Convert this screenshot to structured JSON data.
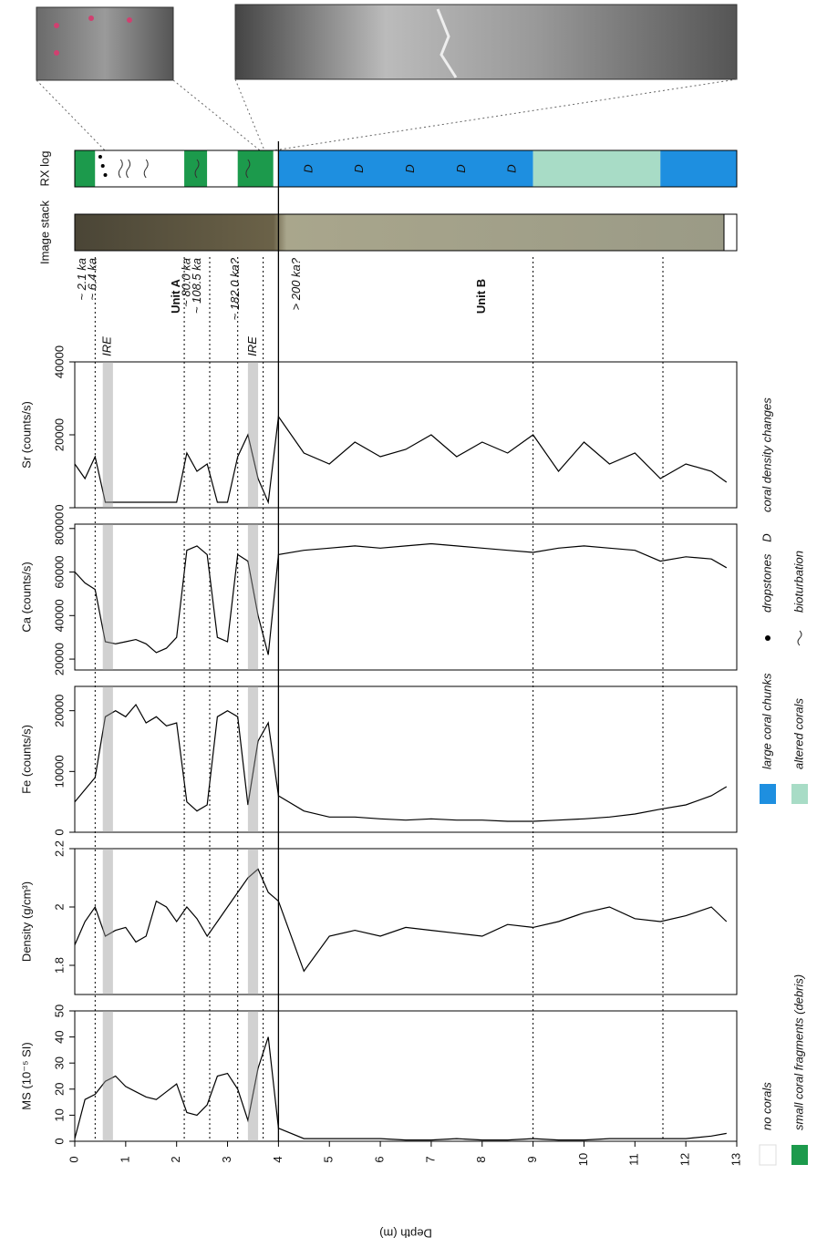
{
  "rx_log": {
    "label": "RX log",
    "segments": [
      {
        "from": 0,
        "to": 0.4,
        "color": "#1c9a4c"
      },
      {
        "from": 0.4,
        "to": 2.15,
        "color": "#ffffff"
      },
      {
        "from": 2.15,
        "to": 2.6,
        "color": "#1c9a4c"
      },
      {
        "from": 2.6,
        "to": 3.2,
        "color": "#ffffff"
      },
      {
        "from": 3.2,
        "to": 3.9,
        "color": "#1c9a4c"
      },
      {
        "from": 3.9,
        "to": 4.0,
        "color": "#ffffff"
      },
      {
        "from": 4.0,
        "to": 9.0,
        "color": "#1e8fe0"
      },
      {
        "from": 9.0,
        "to": 11.5,
        "color": "#a8dcc6"
      },
      {
        "from": 11.5,
        "to": 13.0,
        "color": "#1e8fe0"
      }
    ]
  },
  "image_stack": {
    "label": "Image stack"
  },
  "ages": [
    {
      "label": "~ 2.1 ka",
      "depth": 0.05
    },
    {
      "label": "~ 6.4 ka",
      "depth": 0.25
    },
    {
      "label": "~ 80.0 ka",
      "depth": 2.1
    },
    {
      "label": "~ 108.5 ka",
      "depth": 2.3
    },
    {
      "label": "~ 182.0 ka?",
      "depth": 3.05
    },
    {
      "label": "> 200 ka?",
      "depth": 4.25
    }
  ],
  "units": [
    "Unit A",
    "Unit B"
  ],
  "boundary": 4.0,
  "dividers": [
    0.4,
    2.15,
    2.65,
    3.2,
    3.7,
    9.0,
    11.55
  ],
  "ire_bands": [
    {
      "label": "IRE",
      "from": 0.55,
      "to": 0.75
    },
    {
      "label": "IRE",
      "from": 3.4,
      "to": 3.6
    }
  ],
  "chart_data": [
    {
      "type": "line",
      "title": "Sr (counts/s)",
      "color": "#000000",
      "ylim": [
        0,
        40000
      ],
      "yticks": [
        0,
        20000,
        40000
      ],
      "xlim": [
        0,
        13
      ],
      "x": [
        0,
        0.2,
        0.4,
        0.6,
        0.8,
        1.0,
        1.2,
        1.4,
        1.6,
        1.8,
        2.0,
        2.2,
        2.4,
        2.6,
        2.8,
        3.0,
        3.2,
        3.4,
        3.6,
        3.8,
        4.0,
        4.5,
        5.0,
        5.5,
        6.0,
        6.5,
        7.0,
        7.5,
        8.0,
        8.5,
        9.0,
        9.5,
        10.0,
        10.5,
        11.0,
        11.5,
        12.0,
        12.5,
        12.8
      ],
      "values": [
        12000,
        8000,
        14000,
        1500,
        1500,
        1500,
        1500,
        1500,
        1500,
        1500,
        1500,
        15000,
        10000,
        12000,
        1500,
        1500,
        14000,
        20000,
        8000,
        1500,
        25000,
        15000,
        12000,
        18000,
        14000,
        16000,
        20000,
        14000,
        18000,
        15000,
        20000,
        10000,
        18000,
        12000,
        15000,
        8000,
        12000,
        10000,
        7000
      ]
    },
    {
      "type": "line",
      "title": "Ca (counts/s)",
      "color": "#000000",
      "ylim": [
        15000,
        82000
      ],
      "yticks": [
        20000,
        40000,
        60000,
        80000
      ],
      "xlim": [
        0,
        13
      ],
      "x": [
        0,
        0.2,
        0.4,
        0.6,
        0.8,
        1.0,
        1.2,
        1.4,
        1.6,
        1.8,
        2.0,
        2.2,
        2.4,
        2.6,
        2.8,
        3.0,
        3.2,
        3.4,
        3.6,
        3.8,
        4.0,
        4.5,
        5.0,
        5.5,
        6.0,
        6.5,
        7.0,
        7.5,
        8.0,
        8.5,
        9.0,
        9.5,
        10.0,
        10.5,
        11.0,
        11.5,
        12.0,
        12.5,
        12.8
      ],
      "values": [
        60000,
        55000,
        52000,
        28000,
        27000,
        28000,
        29000,
        27000,
        23000,
        25000,
        30000,
        70000,
        72000,
        68000,
        30000,
        28000,
        68000,
        65000,
        40000,
        22000,
        68000,
        70000,
        71000,
        72000,
        71000,
        72000,
        73000,
        72000,
        71000,
        70000,
        69000,
        71000,
        72000,
        71000,
        70000,
        65000,
        67000,
        66000,
        62000
      ]
    },
    {
      "type": "line",
      "title": "Fe (counts/s)",
      "color": "#000000",
      "ylim": [
        0,
        24000
      ],
      "yticks": [
        0,
        10000,
        20000
      ],
      "xlim": [
        0,
        13
      ],
      "x": [
        0,
        0.2,
        0.4,
        0.6,
        0.8,
        1.0,
        1.2,
        1.4,
        1.6,
        1.8,
        2.0,
        2.2,
        2.4,
        2.6,
        2.8,
        3.0,
        3.2,
        3.4,
        3.6,
        3.8,
        4.0,
        4.5,
        5.0,
        5.5,
        6.0,
        6.5,
        7.0,
        7.5,
        8.0,
        8.5,
        9.0,
        9.5,
        10.0,
        10.5,
        11.0,
        11.5,
        12.0,
        12.5,
        12.8
      ],
      "values": [
        5000,
        7000,
        9000,
        19000,
        20000,
        19000,
        21000,
        18000,
        19000,
        17500,
        18000,
        5000,
        3500,
        4500,
        19000,
        20000,
        19000,
        4500,
        15000,
        18000,
        6000,
        3500,
        2500,
        2500,
        2200,
        2000,
        2200,
        2000,
        2000,
        1800,
        1800,
        2000,
        2200,
        2500,
        3000,
        3800,
        4500,
        6000,
        7500
      ]
    },
    {
      "type": "line",
      "title": "Density (g/cm³)",
      "color": "#000000",
      "ylim": [
        1.7,
        2.2
      ],
      "yticks": [
        1.8,
        2,
        2.2
      ],
      "xlim": [
        0,
        13
      ],
      "x": [
        0,
        0.2,
        0.4,
        0.6,
        0.8,
        1.0,
        1.2,
        1.4,
        1.6,
        1.8,
        2.0,
        2.2,
        2.4,
        2.6,
        2.8,
        3.0,
        3.2,
        3.4,
        3.6,
        3.8,
        4.0,
        4.5,
        5.0,
        5.5,
        6.0,
        6.5,
        7.0,
        7.5,
        8.0,
        8.5,
        9.0,
        9.5,
        10.0,
        10.5,
        11.0,
        11.5,
        12.0,
        12.5,
        12.8
      ],
      "values": [
        1.87,
        1.95,
        2.0,
        1.9,
        1.92,
        1.93,
        1.88,
        1.9,
        2.02,
        2.0,
        1.95,
        2.0,
        1.96,
        1.9,
        1.95,
        2.0,
        2.05,
        2.1,
        2.13,
        2.05,
        2.02,
        1.78,
        1.9,
        1.92,
        1.9,
        1.93,
        1.92,
        1.91,
        1.9,
        1.94,
        1.93,
        1.95,
        1.98,
        2.0,
        1.96,
        1.95,
        1.97,
        2.0,
        1.95
      ]
    },
    {
      "type": "line",
      "title": "MS (10⁻⁵ SI)",
      "color": "#000000",
      "ylim": [
        0,
        50
      ],
      "yticks": [
        0,
        10,
        20,
        30,
        40,
        50
      ],
      "xlim": [
        0,
        13
      ],
      "xlabel": "Depth (m)",
      "xticks": [
        0,
        1,
        2,
        3,
        4,
        5,
        6,
        7,
        8,
        9,
        10,
        11,
        12,
        13
      ],
      "x": [
        0,
        0.2,
        0.4,
        0.6,
        0.8,
        1.0,
        1.2,
        1.4,
        1.6,
        1.8,
        2.0,
        2.2,
        2.4,
        2.6,
        2.8,
        3.0,
        3.2,
        3.4,
        3.6,
        3.8,
        4.0,
        4.5,
        5.0,
        5.5,
        6.0,
        6.5,
        7.0,
        7.5,
        8.0,
        8.5,
        9.0,
        9.5,
        10.0,
        10.5,
        11.0,
        11.5,
        12.0,
        12.5,
        12.8
      ],
      "values": [
        1,
        16,
        18,
        23,
        25,
        21,
        19,
        17,
        16,
        19,
        22,
        11,
        10,
        14,
        25,
        26,
        20,
        8,
        28,
        40,
        5,
        1,
        1,
        1,
        1,
        0.5,
        0.5,
        1,
        0.5,
        0.5,
        1,
        0.5,
        0.5,
        1,
        1,
        1,
        1,
        2,
        3
      ]
    }
  ],
  "legend": [
    {
      "label": "no corals",
      "color": "#ffffff"
    },
    {
      "label": "small coral fragments (debris)",
      "color": "#1c9a4c"
    },
    {
      "label": "large coral chunks",
      "color": "#1e8fe0"
    },
    {
      "label": "altered corals",
      "color": "#a8dcc6"
    },
    {
      "label": "dropstones"
    },
    {
      "label": "bioturbation"
    },
    {
      "label": "coral density changes",
      "symbol": "D"
    }
  ]
}
